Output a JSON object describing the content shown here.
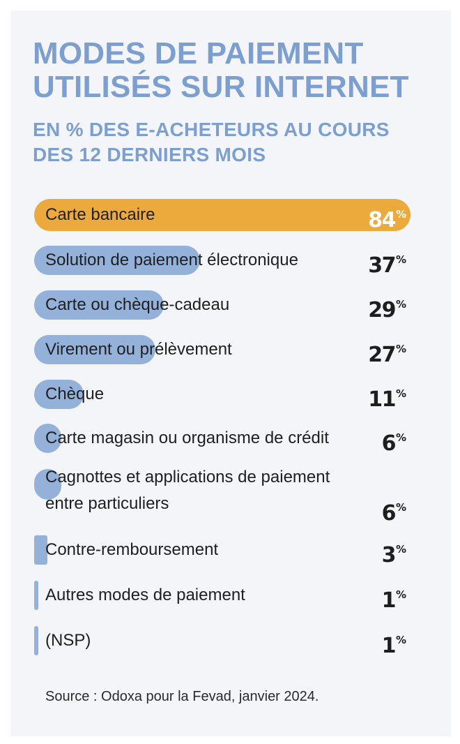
{
  "header": {
    "title_line1": "MODES DE PAIEMENT",
    "title_line2": "UTILISÉS SUR INTERNET",
    "subtitle_line1": "EN % DES E-ACHETEURS AU COURS",
    "subtitle_line2": "DES 12 DERNIERS MOIS"
  },
  "chart_data": {
    "type": "bar",
    "orientation": "horizontal",
    "title": "MODES DE PAIEMENT UTILISÉS SUR INTERNET",
    "subtitle": "EN % DES E-ACHETEURS AU COURS DES 12 DERNIERS MOIS",
    "unit": "%",
    "xlim": [
      0,
      84
    ],
    "categories": [
      "Carte bancaire",
      "Solution de paiement électronique",
      "Carte ou chèque-cadeau",
      "Virement ou prélèvement",
      "Chèque",
      "Carte magasin ou organisme de crédit",
      "Cagnottes et applications de paiement entre particuliers",
      "Contre-remboursement",
      "Autres modes de paiement",
      "(NSP)"
    ],
    "label_lines": [
      [
        "Carte bancaire"
      ],
      [
        "Solution de paiement électronique"
      ],
      [
        "Carte ou chèque-cadeau"
      ],
      [
        "Virement ou prélèvement"
      ],
      [
        "Chèque"
      ],
      [
        "Carte magasin ou organisme de crédit"
      ],
      [
        "Cagnottes et applications de paiement",
        "entre particuliers"
      ],
      [
        "Contre-remboursement"
      ],
      [
        "Autres modes de paiement"
      ],
      [
        "(NSP)"
      ]
    ],
    "values": [
      84,
      37,
      29,
      27,
      11,
      6,
      6,
      3,
      1,
      1
    ],
    "highlight_index": 0,
    "colors": {
      "highlight": "#ecaa3d",
      "bar": "#93b1d9",
      "title": "#7c9fd1"
    }
  },
  "footer": {
    "source": "Source : Odoxa pour la Fevad, janvier 2024."
  }
}
